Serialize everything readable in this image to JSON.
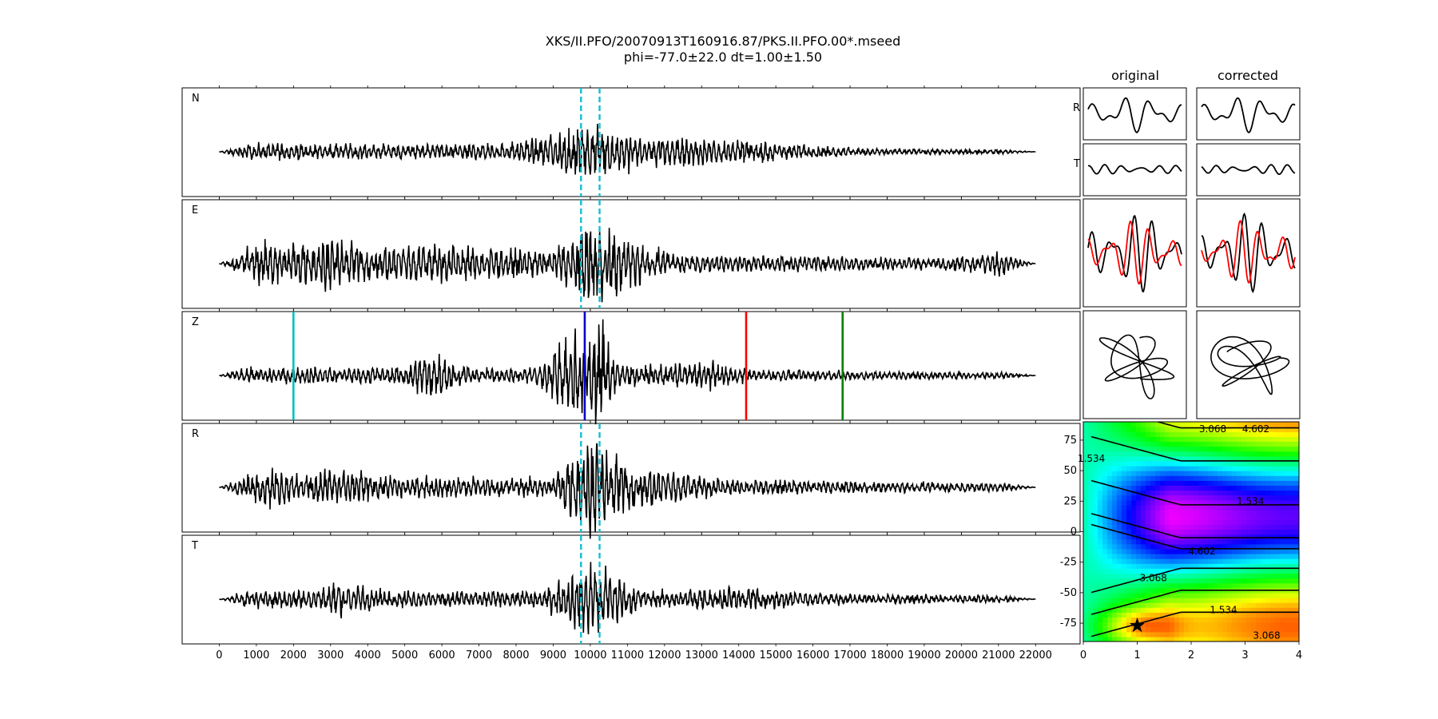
{
  "title": {
    "line1": "XKS/II.PFO/20070913T160916.87/PKS.II.PFO.00*.mseed",
    "line2": "phi=-77.0±22.0 dt=1.00±1.50"
  },
  "column_titles": {
    "original": "original",
    "corrected": "corrected"
  },
  "colors": {
    "trace": "#000000",
    "window_marker": "#17becf",
    "pick_cyan": "#00bfbf",
    "pick_blue": "#0000cc",
    "pick_red": "#ff0000",
    "pick_green": "#008000",
    "second_trace": "#ff0000"
  },
  "chart_data": [
    {
      "type": "line",
      "name": "seismograms",
      "panels": [
        "N",
        "E",
        "Z",
        "R",
        "T"
      ],
      "xlim": [
        -1000,
        23200
      ],
      "x_range": [
        0,
        22000
      ],
      "xticks": [
        0,
        1000,
        2000,
        3000,
        4000,
        5000,
        6000,
        7000,
        8000,
        9000,
        10000,
        11000,
        12000,
        13000,
        14000,
        15000,
        16000,
        17000,
        18000,
        19000,
        20000,
        21000,
        22000
      ],
      "analysis_window": [
        9750,
        10250
      ],
      "phase_picks": [
        {
          "x": 2000,
          "color": "#00bfbf"
        },
        {
          "x": 9850,
          "color": "#0000cc"
        },
        {
          "x": 14200,
          "color": "#ff0000"
        },
        {
          "x": 16800,
          "color": "#008000"
        }
      ]
    },
    {
      "type": "line",
      "name": "component-traces",
      "rows": [
        "R",
        "T"
      ],
      "columns": [
        "original",
        "corrected"
      ]
    },
    {
      "type": "line",
      "name": "particle-motion",
      "columns": [
        "original",
        "corrected"
      ]
    },
    {
      "type": "heatmap",
      "name": "error-surface",
      "xlabel": "",
      "ylabel": "",
      "xlim": [
        0,
        4
      ],
      "ylim": [
        -90,
        90
      ],
      "xticks": [
        0,
        1,
        2,
        3,
        4
      ],
      "yticks": [
        -75,
        -50,
        -25,
        0,
        25,
        50,
        75
      ],
      "contour_levels": [
        "1.534",
        "3.068",
        "4.602"
      ],
      "best": {
        "dt": 1.0,
        "phi": -77.0
      }
    }
  ]
}
